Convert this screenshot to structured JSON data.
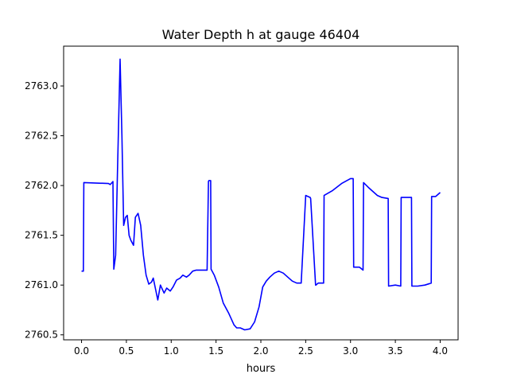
{
  "chart_data": {
    "type": "line",
    "title": "Water Depth h at gauge 46404",
    "xlabel": "hours",
    "ylabel": "",
    "xlim": [
      -0.2,
      4.2
    ],
    "ylim": [
      2760.45,
      2763.4
    ],
    "xticks": [
      0.0,
      0.5,
      1.0,
      1.5,
      2.0,
      2.5,
      3.0,
      3.5,
      4.0
    ],
    "xtick_labels": [
      "0.0",
      "0.5",
      "1.0",
      "1.5",
      "2.0",
      "2.5",
      "3.0",
      "3.5",
      "4.0"
    ],
    "yticks": [
      2760.5,
      2761.0,
      2761.5,
      2762.0,
      2762.5,
      2763.0
    ],
    "ytick_labels": [
      "2760.5",
      "2761.0",
      "2761.5",
      "2762.0",
      "2762.5",
      "2763.0"
    ],
    "grid": false,
    "series": [
      {
        "color": "#0000ff",
        "x": [
          0.0,
          0.02,
          0.025,
          0.3,
          0.32,
          0.35,
          0.36,
          0.38,
          0.4,
          0.43,
          0.45,
          0.47,
          0.49,
          0.51,
          0.53,
          0.55,
          0.58,
          0.6,
          0.63,
          0.66,
          0.69,
          0.72,
          0.75,
          0.78,
          0.8,
          0.85,
          0.88,
          0.92,
          0.95,
          0.99,
          1.02,
          1.06,
          1.1,
          1.13,
          1.17,
          1.2,
          1.24,
          1.28,
          1.32,
          1.36,
          1.4,
          1.415,
          1.42,
          1.435,
          1.44,
          1.445,
          1.48,
          1.53,
          1.58,
          1.64,
          1.7,
          1.73,
          1.77,
          1.82,
          1.88,
          1.93,
          1.98,
          2.02,
          2.06,
          2.1,
          2.15,
          2.2,
          2.25,
          2.3,
          2.35,
          2.4,
          2.45,
          2.5,
          2.55,
          2.555,
          2.61,
          2.615,
          2.64,
          2.7,
          2.705,
          2.8,
          2.9,
          3.0,
          3.03,
          3.035,
          3.1,
          3.14,
          3.145,
          3.2,
          3.3,
          3.35,
          3.42,
          3.425,
          3.5,
          3.56,
          3.565,
          3.68,
          3.685,
          3.75,
          3.83,
          3.9,
          3.905,
          3.95,
          4.0
        ],
        "y": [
          2761.14,
          2761.14,
          2762.03,
          2762.02,
          2762.01,
          2762.04,
          2761.16,
          2761.3,
          2762.1,
          2763.27,
          2762.5,
          2761.6,
          2761.68,
          2761.7,
          2761.5,
          2761.45,
          2761.4,
          2761.68,
          2761.72,
          2761.6,
          2761.3,
          2761.1,
          2761.01,
          2761.03,
          2761.07,
          2760.85,
          2761.0,
          2760.92,
          2760.97,
          2760.94,
          2760.98,
          2761.05,
          2761.07,
          2761.1,
          2761.08,
          2761.1,
          2761.14,
          2761.15,
          2761.15,
          2761.15,
          2761.15,
          2762.04,
          2762.05,
          2762.05,
          2762.05,
          2761.16,
          2761.1,
          2760.98,
          2760.82,
          2760.72,
          2760.6,
          2760.57,
          2760.57,
          2760.55,
          2760.56,
          2760.63,
          2760.78,
          2760.98,
          2761.04,
          2761.08,
          2761.12,
          2761.14,
          2761.12,
          2761.08,
          2761.04,
          2761.02,
          2761.02,
          2761.9,
          2761.88,
          2761.87,
          2761.0,
          2761.0,
          2761.02,
          2761.02,
          2761.9,
          2761.95,
          2762.02,
          2762.07,
          2762.07,
          2761.18,
          2761.18,
          2761.15,
          2762.03,
          2761.98,
          2761.9,
          2761.88,
          2761.87,
          2760.99,
          2761.0,
          2760.99,
          2761.88,
          2761.88,
          2760.99,
          2760.99,
          2761.0,
          2761.02,
          2761.89,
          2761.89,
          2761.93
        ]
      }
    ]
  }
}
